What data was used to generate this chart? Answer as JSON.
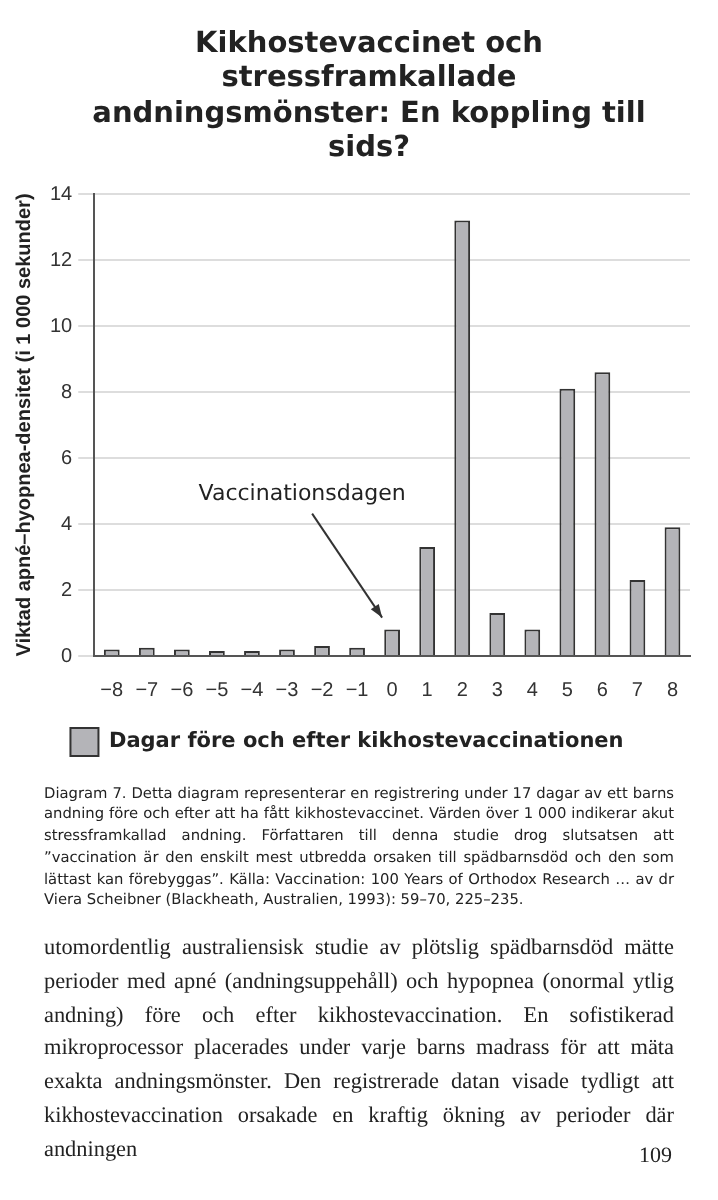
{
  "chart_data": {
    "type": "bar",
    "title": "Kikhostevaccinet och stressframkallade andningsmönster: En koppling till sids?",
    "ylabel": "Viktad apné–hyopnea-densitet (i 1 000 sekunder)",
    "categories": [
      "−8",
      "−7",
      "−6",
      "−5",
      "−4",
      "−3",
      "−2",
      "−1",
      "0",
      "1",
      "2",
      "3",
      "4",
      "5",
      "6",
      "7",
      "8"
    ],
    "series": [
      {
        "name": "Dagar före och efter kikhostevaccinationen",
        "color": "#b4b4b8",
        "values": [
          0.2,
          0.25,
          0.2,
          0.15,
          0.15,
          0.2,
          0.3,
          0.25,
          0.8,
          3.3,
          13.2,
          1.3,
          0.8,
          8.1,
          8.6,
          2.3,
          3.9
        ]
      }
    ],
    "ylim": [
      0,
      14
    ],
    "yticks": [
      0,
      2,
      4,
      6,
      8,
      10,
      12,
      14
    ],
    "grid": "y",
    "legend": "bottom",
    "annotations": [
      {
        "text": "Vaccinationsdagen",
        "x": "0",
        "y": 0.8
      },
      "Diagram 7. Detta diagram representerar en registrering under 17 dagar av ett barns andning före och efter att ha fått kikhostevaccinet. Värden över 1 000 indikerar akut stressframkallad andning. Författaren till denna studie drog slutsatsen att ”vaccination är den enskilt mest utbredda orsaken till spädbarnsdöd och den som lättast kan förebyggas”. Källa: Vaccination: 100 Years of Orthodox Research … av dr Viera Scheibner (Blackheath, Australien, 1993): 59–70, 225–235.",
      "utomordentlig australiensisk studie av plötslig spädbarnsdöd mätte perioder med apné (andningsuppehåll) och hypopnea (onormal ytlig andning) före och efter kikhostevaccination. En sofistikerad mikroprocessor placerades under varje barns madrass för att mäta exakta andningsmönster. Den registrerade datan visade tydligt att kikhostevaccination orsakade en kraftig ökning av perioder där andningen",
      "109"
    ]
  }
}
